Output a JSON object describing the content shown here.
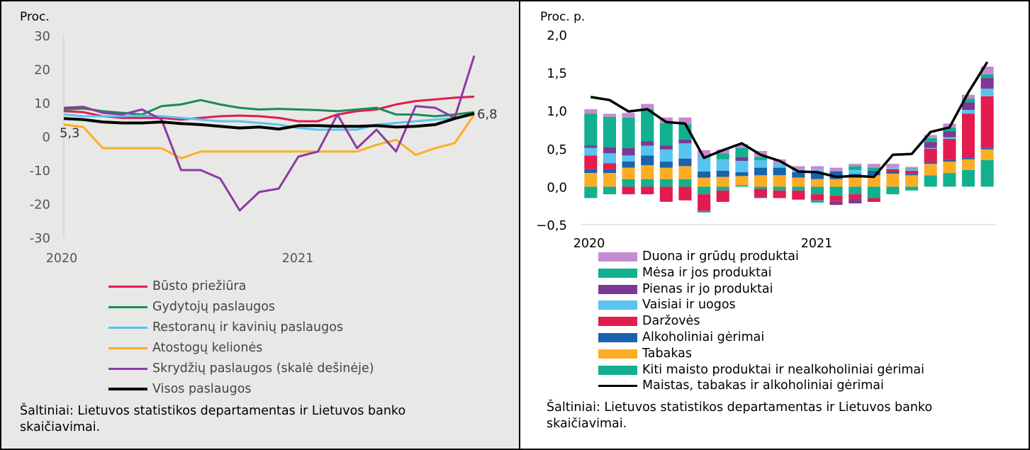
{
  "chart_data": [
    {
      "type": "line",
      "ylabel": "Proc.",
      "ylim": [
        -30,
        30
      ],
      "yticks": [
        "30",
        "20",
        "10",
        "0",
        "-10",
        "-20",
        "-30"
      ],
      "xtick_labels": [
        "2020",
        "2021"
      ],
      "secondary_axis_note": "skalė dešinėje",
      "annotations": {
        "start": "5,3",
        "end": "6,8"
      },
      "x": [
        "2020-01",
        "2020-02",
        "2020-03",
        "2020-04",
        "2020-05",
        "2020-06",
        "2020-07",
        "2020-08",
        "2020-09",
        "2020-10",
        "2020-11",
        "2020-12",
        "2021-01",
        "2021-02",
        "2021-03",
        "2021-04",
        "2021-05",
        "2021-06",
        "2021-07",
        "2021-08",
        "2021-09",
        "2021-10"
      ],
      "series": [
        {
          "name": "Būsto priežiūra",
          "color": "#e31b4f",
          "values": [
            7.5,
            7.2,
            6.0,
            5.5,
            5.5,
            5.5,
            5.0,
            5.5,
            6.0,
            6.2,
            6.0,
            5.5,
            4.5,
            4.5,
            6.5,
            7.5,
            8.0,
            9.5,
            10.5,
            11.0,
            11.5,
            11.8
          ]
        },
        {
          "name": "Gydytojų paslaugos",
          "color": "#1b8a5a",
          "values": [
            8.0,
            8.3,
            7.5,
            7.0,
            6.5,
            9.0,
            9.5,
            10.8,
            9.5,
            8.5,
            8.0,
            8.2,
            8.0,
            7.8,
            7.5,
            8.0,
            8.5,
            6.5,
            6.5,
            6.0,
            6.5,
            7.2
          ]
        },
        {
          "name": "Restoranų ir kavinių paslaugos",
          "color": "#58c4ef",
          "values": [
            6.5,
            6.0,
            6.0,
            6.0,
            6.2,
            6.0,
            5.5,
            5.0,
            4.5,
            4.5,
            4.0,
            3.5,
            2.5,
            2.0,
            2.0,
            2.0,
            3.5,
            4.0,
            4.5,
            5.0,
            5.5,
            6.8
          ]
        },
        {
          "name": "Atostogų kelionės",
          "color": "#fbae25",
          "values": [
            3.5,
            2.8,
            -3.5,
            -3.5,
            -3.5,
            -3.5,
            -6.5,
            -4.5,
            -4.5,
            -4.5,
            -4.5,
            -4.5,
            -4.5,
            -4.5,
            -4.5,
            -4.5,
            -2.5,
            -1.0,
            -5.5,
            -3.5,
            -2.0,
            6.5
          ]
        },
        {
          "name": "Skrydžių paslaugos (skalė dešinėje)",
          "color": "#8a3ca0",
          "values": [
            8.5,
            8.8,
            7.0,
            6.5,
            8.0,
            5.0,
            -10.0,
            -10.0,
            -12.5,
            -22.0,
            -16.5,
            -15.5,
            -6.0,
            -4.5,
            6.5,
            -3.5,
            2.0,
            -4.5,
            9.0,
            8.5,
            5.5,
            24.0
          ]
        },
        {
          "name": "Visos paslaugos",
          "color": "#000000",
          "values": [
            5.3,
            5.0,
            4.3,
            4.0,
            4.0,
            4.3,
            3.8,
            3.5,
            3.0,
            2.5,
            2.8,
            2.2,
            3.2,
            3.2,
            3.0,
            3.0,
            3.2,
            2.8,
            3.0,
            3.5,
            5.3,
            6.8
          ]
        }
      ]
    },
    {
      "type": "bar",
      "stacked": true,
      "ylabel": "Proc. p.",
      "ylim": [
        -0.5,
        2.0
      ],
      "yticks": [
        "2,0",
        "1,5",
        "1,0",
        "0,5",
        "0,0",
        "−0,5"
      ],
      "xtick_labels": [
        "2020",
        "2021"
      ],
      "x": [
        "2020-01",
        "2020-02",
        "2020-03",
        "2020-04",
        "2020-05",
        "2020-06",
        "2020-07",
        "2020-08",
        "2020-09",
        "2020-10",
        "2020-11",
        "2020-12",
        "2021-01",
        "2021-02",
        "2021-03",
        "2021-04",
        "2021-05",
        "2021-06",
        "2021-07",
        "2021-08",
        "2021-09",
        "2021-10"
      ],
      "series": [
        {
          "name": "Kiti maisto produktai ir nealkoholiniai gėrimai",
          "color": "#12b090",
          "values": [
            -0.15,
            -0.1,
            0.1,
            0.1,
            0.1,
            0.1,
            -0.1,
            -0.05,
            0.02,
            -0.03,
            -0.05,
            -0.05,
            -0.1,
            -0.12,
            -0.1,
            -0.15,
            -0.1,
            -0.05,
            0.15,
            0.18,
            0.22,
            0.35
          ]
        },
        {
          "name": "Tabakas",
          "color": "#fbae25",
          "values": [
            0.18,
            0.18,
            0.15,
            0.18,
            0.15,
            0.17,
            0.12,
            0.13,
            0.12,
            0.15,
            0.15,
            0.12,
            0.1,
            0.1,
            0.12,
            0.15,
            0.17,
            0.15,
            0.15,
            0.15,
            0.14,
            0.14
          ]
        },
        {
          "name": "Alkoholiniai gėrimai",
          "color": "#1a62ad",
          "values": [
            0.05,
            0.05,
            0.08,
            0.13,
            0.08,
            0.1,
            0.08,
            0.08,
            0.05,
            0.1,
            0.1,
            0.07,
            0.08,
            0.1,
            0.05,
            0.06,
            0.02,
            0.02,
            0.02,
            0.02,
            0.02,
            0.02
          ]
        },
        {
          "name": "Daržovės",
          "color": "#e31b4f",
          "values": [
            0.18,
            0.08,
            -0.1,
            -0.1,
            -0.2,
            -0.18,
            -0.22,
            -0.15,
            0.0,
            -0.1,
            -0.1,
            -0.12,
            -0.08,
            -0.07,
            -0.06,
            -0.05,
            0.04,
            0.04,
            0.18,
            0.28,
            0.58,
            0.68
          ]
        },
        {
          "name": "Vaisiai ir uogos",
          "color": "#58c4ef",
          "values": [
            0.1,
            0.13,
            0.08,
            0.13,
            0.16,
            0.2,
            0.2,
            0.15,
            0.15,
            0.1,
            0.05,
            0.03,
            0.05,
            0.0,
            0.05,
            0.0,
            0.02,
            0.02,
            0.01,
            0.02,
            0.05,
            0.1
          ]
        },
        {
          "name": "Pienas ir jo produktai",
          "color": "#7b3996",
          "values": [
            0.03,
            0.08,
            0.1,
            0.06,
            0.05,
            0.05,
            0.0,
            0.0,
            0.05,
            -0.02,
            0.0,
            0.0,
            0.0,
            -0.05,
            -0.06,
            0.0,
            0.0,
            0.0,
            0.08,
            0.08,
            0.1,
            0.14
          ]
        },
        {
          "name": "Mėsa ir jos produktai",
          "color": "#12b090",
          "values": [
            0.42,
            0.4,
            0.4,
            0.42,
            0.3,
            0.2,
            -0.02,
            0.08,
            0.12,
            0.04,
            0.0,
            0.0,
            -0.03,
            0.0,
            0.05,
            0.04,
            0.0,
            0.01,
            0.05,
            0.05,
            0.05,
            0.05
          ]
        },
        {
          "name": "Duona ir grūdų produktai",
          "color": "#c58bd1",
          "values": [
            0.06,
            0.04,
            0.06,
            0.07,
            0.07,
            0.09,
            0.08,
            0.05,
            0.05,
            0.08,
            0.06,
            0.05,
            0.04,
            0.05,
            0.03,
            0.05,
            0.05,
            0.02,
            0.04,
            0.05,
            0.05,
            0.1
          ]
        }
      ],
      "line": {
        "name": "Maistas, tabakas ir alkoholiniai gėrimai",
        "color": "#000000",
        "values": [
          1.18,
          1.14,
          0.99,
          1.02,
          0.85,
          0.83,
          0.38,
          0.48,
          0.57,
          0.42,
          0.34,
          0.2,
          0.19,
          0.13,
          0.14,
          0.13,
          0.42,
          0.43,
          0.72,
          0.78,
          1.24,
          1.64
        ]
      }
    }
  ],
  "legend_left": [
    {
      "label": "Būsto priežiūra",
      "color": "#e31b4f"
    },
    {
      "label": "Gydytojų paslaugos",
      "color": "#1b8a5a"
    },
    {
      "label": "Restoranų ir kavinių paslaugos",
      "color": "#58c4ef"
    },
    {
      "label": "Atostogų kelionės",
      "color": "#fbae25"
    },
    {
      "label": "Skrydžių paslaugos (skalė dešinėje)",
      "color": "#8a3ca0"
    },
    {
      "label": "Visos paslaugos",
      "color": "#000000"
    }
  ],
  "legend_right": [
    {
      "label": "Duona ir grūdų produktai",
      "color": "#c58bd1",
      "kind": "bar"
    },
    {
      "label": "Mėsa ir jos produktai",
      "color": "#12b090",
      "kind": "bar"
    },
    {
      "label": "Pienas ir jo produktai",
      "color": "#7b3996",
      "kind": "bar"
    },
    {
      "label": "Vaisiai ir uogos",
      "color": "#58c4ef",
      "kind": "bar"
    },
    {
      "label": "Daržovės",
      "color": "#e31b4f",
      "kind": "bar"
    },
    {
      "label": "Alkoholiniai gėrimai",
      "color": "#1a62ad",
      "kind": "bar"
    },
    {
      "label": "Tabakas",
      "color": "#fbae25",
      "kind": "bar"
    },
    {
      "label": "Kiti maisto produktai ir nealkoholiniai gėrimai",
      "color": "#12b090",
      "kind": "bar"
    },
    {
      "label": "Maistas, tabakas ir alkoholiniai gėrimai",
      "color": "#000000",
      "kind": "line"
    }
  ],
  "sources": {
    "left": "Šaltiniai: Lietuvos statistikos departamentas ir Lietuvos banko skaičiavimai.",
    "right": "Šaltiniai: Lietuvos statistikos departamentas ir Lietuvos banko skaičiavimai."
  }
}
